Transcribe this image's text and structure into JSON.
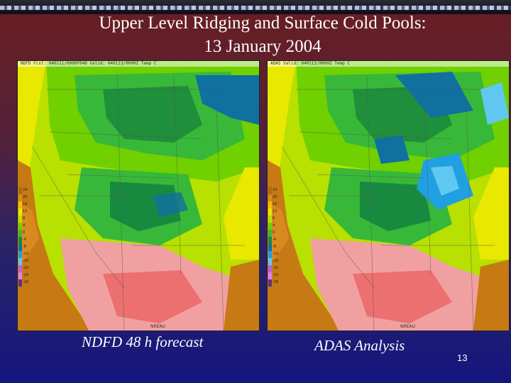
{
  "slide": {
    "title_line1": "Upper Level Ridging and Surface Cold Pools:",
    "title_line2": "13 January 2004",
    "page_number": "13"
  },
  "maps": {
    "left": {
      "caption": "NDFD 48 h forecast",
      "header": "NDFD Fcst: 040111/0000F048  Valid: 040113/0000Z  Temp C",
      "watermark": "NREAU",
      "variant": "forecast"
    },
    "right": {
      "caption": "ADAS Analysis",
      "header": "ADAS Valid: 040113/0000Z  Temp C",
      "watermark": "NREAU",
      "variant": "analysis"
    },
    "legend": {
      "labels": [
        "24",
        "20",
        "16",
        "12",
        "8",
        "4",
        "0",
        "-4",
        "-8",
        "-12",
        "-16",
        "-20",
        "-24",
        "-28"
      ],
      "colors": [
        "#b06a10",
        "#d88a20",
        "#f0c000",
        "#e8e800",
        "#b8e000",
        "#70d000",
        "#38b838",
        "#188a40",
        "#1070a0",
        "#20a0e0",
        "#60c8f0",
        "#c060e0",
        "#e080f0",
        "#603080"
      ]
    }
  }
}
